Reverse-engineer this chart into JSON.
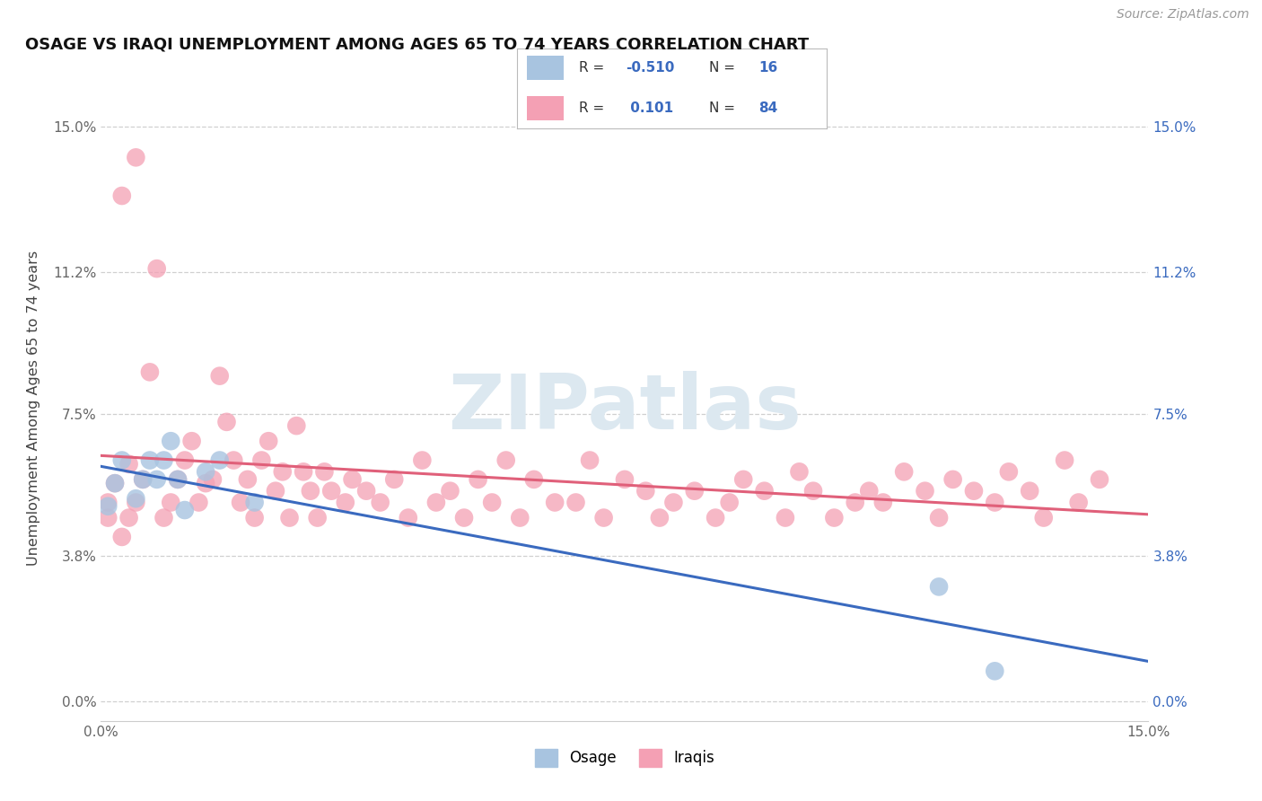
{
  "title": "OSAGE VS IRAQI UNEMPLOYMENT AMONG AGES 65 TO 74 YEARS CORRELATION CHART",
  "source": "Source: ZipAtlas.com",
  "ylabel": "Unemployment Among Ages 65 to 74 years",
  "xmin": 0.0,
  "xmax": 0.15,
  "ymin": -0.005,
  "ymax": 0.158,
  "yticks": [
    0.0,
    0.038,
    0.075,
    0.112,
    0.15
  ],
  "ytick_labels": [
    "0.0%",
    "3.8%",
    "7.5%",
    "11.2%",
    "15.0%"
  ],
  "xticks": [
    0.0,
    0.15
  ],
  "xtick_labels": [
    "0.0%",
    "15.0%"
  ],
  "osage_R": -0.51,
  "osage_N": 16,
  "iraqi_R": 0.101,
  "iraqi_N": 84,
  "osage_color": "#a8c4e0",
  "iraqi_color": "#f4a0b4",
  "osage_line_color": "#3a6abf",
  "iraqi_line_color": "#e0607a",
  "legend_label_osage": "Osage",
  "legend_label_iraqi": "Iraqis",
  "background_color": "#ffffff",
  "grid_color": "#d0d0d0",
  "watermark_color": "#dce8f0",
  "title_color": "#111111",
  "label_color": "#444444",
  "tick_color": "#666666",
  "right_tick_color": "#3a6abf",
  "source_color": "#999999",
  "osage_x": [
    0.001,
    0.002,
    0.003,
    0.005,
    0.006,
    0.007,
    0.008,
    0.009,
    0.01,
    0.011,
    0.012,
    0.015,
    0.017,
    0.022,
    0.12,
    0.128
  ],
  "osage_y": [
    0.051,
    0.057,
    0.063,
    0.053,
    0.058,
    0.063,
    0.058,
    0.063,
    0.068,
    0.058,
    0.05,
    0.06,
    0.063,
    0.052,
    0.03,
    0.008
  ],
  "iraqi_x": [
    0.001,
    0.002,
    0.003,
    0.004,
    0.005,
    0.001,
    0.003,
    0.004,
    0.005,
    0.006,
    0.007,
    0.008,
    0.009,
    0.01,
    0.011,
    0.012,
    0.013,
    0.014,
    0.015,
    0.016,
    0.017,
    0.018,
    0.019,
    0.02,
    0.021,
    0.022,
    0.023,
    0.024,
    0.025,
    0.026,
    0.027,
    0.028,
    0.029,
    0.03,
    0.031,
    0.032,
    0.033,
    0.035,
    0.036,
    0.038,
    0.04,
    0.042,
    0.044,
    0.046,
    0.048,
    0.05,
    0.052,
    0.054,
    0.056,
    0.058,
    0.06,
    0.062,
    0.065,
    0.068,
    0.07,
    0.072,
    0.075,
    0.078,
    0.08,
    0.082,
    0.085,
    0.088,
    0.09,
    0.092,
    0.095,
    0.098,
    0.1,
    0.102,
    0.105,
    0.108,
    0.11,
    0.112,
    0.115,
    0.118,
    0.12,
    0.122,
    0.125,
    0.128,
    0.13,
    0.133,
    0.135,
    0.138,
    0.14,
    0.143
  ],
  "iraqi_y": [
    0.052,
    0.057,
    0.132,
    0.062,
    0.142,
    0.048,
    0.043,
    0.048,
    0.052,
    0.058,
    0.086,
    0.113,
    0.048,
    0.052,
    0.058,
    0.063,
    0.068,
    0.052,
    0.057,
    0.058,
    0.085,
    0.073,
    0.063,
    0.052,
    0.058,
    0.048,
    0.063,
    0.068,
    0.055,
    0.06,
    0.048,
    0.072,
    0.06,
    0.055,
    0.048,
    0.06,
    0.055,
    0.052,
    0.058,
    0.055,
    0.052,
    0.058,
    0.048,
    0.063,
    0.052,
    0.055,
    0.048,
    0.058,
    0.052,
    0.063,
    0.048,
    0.058,
    0.052,
    0.052,
    0.063,
    0.048,
    0.058,
    0.055,
    0.048,
    0.052,
    0.055,
    0.048,
    0.052,
    0.058,
    0.055,
    0.048,
    0.06,
    0.055,
    0.048,
    0.052,
    0.055,
    0.052,
    0.06,
    0.055,
    0.048,
    0.058,
    0.055,
    0.052,
    0.06,
    0.055,
    0.048,
    0.063,
    0.052,
    0.058
  ]
}
